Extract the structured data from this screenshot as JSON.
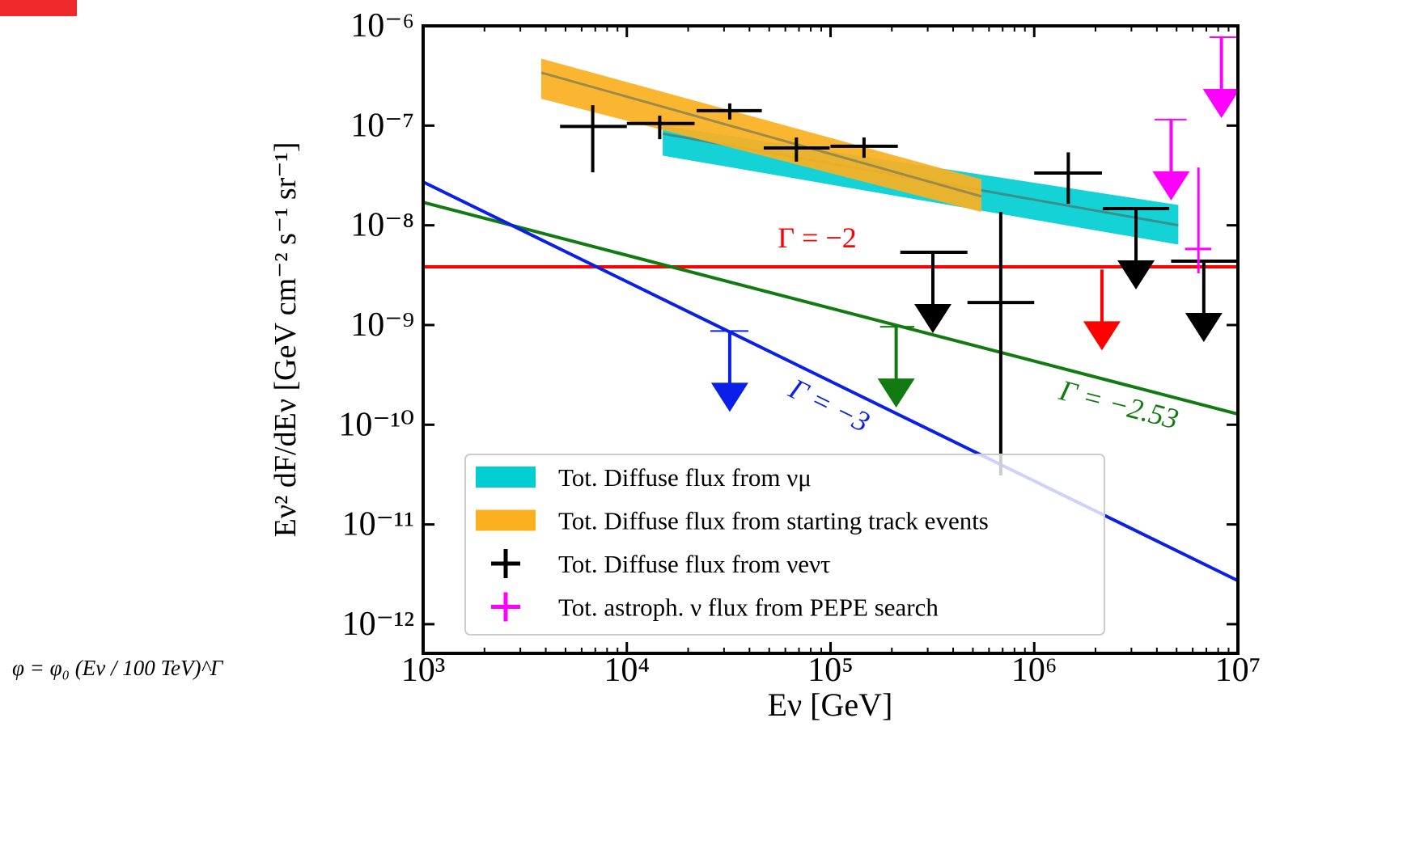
{
  "chart_data": {
    "type": "errorbar",
    "xlabel": "Eν [GeV]",
    "ylabel": "Eν² dF/dEν [GeV cm⁻² s⁻¹ sr⁻¹]",
    "formula": "φ = φ₀ (Eν / 100 TeV)^Γ",
    "log_x": true,
    "log_y": true,
    "xlim": [
      1000,
      10000000
    ],
    "ylim": [
      5.1e-13,
      1e-06
    ],
    "xticks": [
      {
        "value": 1000,
        "label": "10³"
      },
      {
        "value": 10000,
        "label": "10⁴"
      },
      {
        "value": 100000,
        "label": "10⁵"
      },
      {
        "value": 1000000,
        "label": "10⁶"
      },
      {
        "value": 10000000,
        "label": "10⁷"
      }
    ],
    "yticks": [
      {
        "value": 1e-12,
        "label": "10⁻¹²"
      },
      {
        "value": 1e-11,
        "label": "10⁻¹¹"
      },
      {
        "value": 1e-10,
        "label": "10⁻¹⁰"
      },
      {
        "value": 1e-09,
        "label": "10⁻⁹"
      },
      {
        "value": 1e-08,
        "label": "10⁻⁸"
      },
      {
        "value": 1e-07,
        "label": "10⁻⁷"
      },
      {
        "value": 1e-06,
        "label": "10⁻⁶"
      }
    ],
    "legend": "lower right",
    "bands": [
      {
        "name": "Tot. Diffuse flux from νμ",
        "color": "#00ced1",
        "center_color": "#3a8f8f",
        "x": [
          15000,
          5100000
        ],
        "upper": [
          1e-07,
          1.6e-08
        ],
        "lower": [
          5e-08,
          6.4e-09
        ],
        "center": [
          8.3e-08,
          1e-08
        ]
      },
      {
        "name": "Tot. Diffuse flux from starting track events",
        "color": "#fbb01f",
        "center_color": "#9c8a4a",
        "x": [
          3800,
          550000
        ],
        "upper": [
          4.7e-07,
          2.9e-08
        ],
        "lower": [
          1.86e-07,
          1.36e-08
        ],
        "center": [
          3.4e-07,
          1.95e-08
        ]
      }
    ],
    "lines": [
      {
        "label": "Γ = −2",
        "color": "#ff0000",
        "x": [
          1000,
          10000000
        ],
        "values": [
          3.83e-09,
          3.83e-09
        ],
        "limit_x": [
          2150000
        ],
        "limit_values": [
          3.6e-09
        ]
      },
      {
        "label": "Γ = −2.53",
        "color": "#117a11",
        "x": [
          1000,
          10000000
        ],
        "values": [
          1.7e-08,
          1.28e-10
        ],
        "limit_x": [
          210000
        ],
        "limit_xlow": [
          175000
        ],
        "limit_xhigh": [
          258000
        ],
        "limit_values": [
          9.6e-10
        ]
      },
      {
        "label": "Γ = −3",
        "color": "#0a1fe8",
        "x": [
          1000,
          10000000
        ],
        "values": [
          2.72e-08,
          2.73e-12
        ],
        "limit_x": [
          32000
        ],
        "limit_xlow": [
          25700
        ],
        "limit_xhigh": [
          39500
        ],
        "limit_values": [
          8.7e-10
        ]
      }
    ],
    "series": [
      {
        "name": "Tot. Diffuse flux from νeντ",
        "color": "#000000",
        "x": [
          6800,
          14500,
          32000,
          68000,
          146000,
          685000,
          1470000
        ],
        "xlow": [
          4700,
          10000,
          22000,
          47000,
          100000,
          470000,
          1000000
        ],
        "xhigh": [
          10000,
          21500,
          46000,
          99000,
          214000,
          1000000,
          2150000
        ],
        "values": [
          9.8e-08,
          1.05e-07,
          1.41e-07,
          5.96e-08,
          6.2e-08,
          1.68e-09,
          3.34e-08
        ],
        "ylow": [
          3.4e-08,
          7.3e-08,
          1.15e-07,
          4.35e-08,
          4.75e-08,
          3.1e-11,
          1.64e-08
        ],
        "yhigh": [
          1.6e-07,
          1.26e-07,
          1.67e-07,
          7.6e-08,
          7.6e-08,
          1.36e-08,
          5.4e-08
        ],
        "limit_x": [
          318000,
          3160000,
          6800000
        ],
        "limit_xlow": [
          220000,
          2170000,
          4700000
        ],
        "limit_xhigh": [
          470000,
          4600000,
          10000000
        ],
        "limit_values": [
          5.37e-09,
          1.47e-08,
          4.37e-09
        ]
      },
      {
        "name": "Tot. astroph. ν flux from PEPE search",
        "color": "#ff00ff",
        "x": [
          6400000
        ],
        "xlow": [
          5500000
        ],
        "xhigh": [
          7400000
        ],
        "values": [
          5.8e-09
        ],
        "ylow": [
          3.3e-09
        ],
        "yhigh": [
          3.8e-08
        ],
        "limit_x": [
          4700000,
          8300000
        ],
        "limit_xlow": [
          3900000,
          7260000
        ],
        "limit_xhigh": [
          5600000,
          9800000
        ],
        "limit_values": [
          1.15e-07,
          7.7e-07
        ]
      }
    ]
  }
}
